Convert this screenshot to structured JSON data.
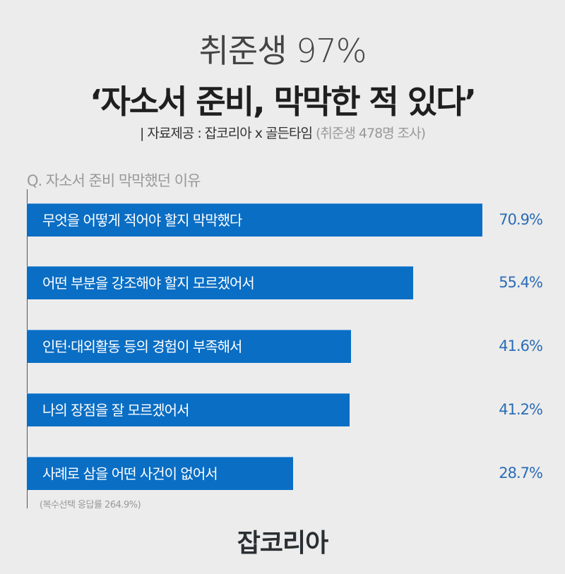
{
  "header": {
    "title_line1": "취준생 97%",
    "title_line2": "‘자소서 준비, 막막한 적 있다’",
    "source": "| 자료제공 : 잡코리아 x 골든타임",
    "source_note": "(취준생 478명 조사)"
  },
  "chart_data": {
    "type": "bar",
    "orientation": "horizontal",
    "title": "Q. 자소서 준비 막막했던 이유",
    "categories": [
      "무엇을 어떻게 적어야 할지 막막했다",
      "어떤 부분을 강조해야 할지 모르겠어서",
      "인턴·대외활동 등의 경험이 부족해서",
      "나의 장점을 잘 모르겠어서",
      "사례로 삼을 어떤 사건이 없어서"
    ],
    "values": [
      70.9,
      55.4,
      41.6,
      41.2,
      28.7
    ],
    "labels": [
      "70.9%",
      "55.4%",
      "41.6%",
      "41.2%",
      "28.7%"
    ],
    "unit": "%",
    "bar_color": "#0a6ec4",
    "value_color": "#2a6db5",
    "footnote": "(복수선택 응답률 264.9%)"
  },
  "logo": "잡코리아"
}
